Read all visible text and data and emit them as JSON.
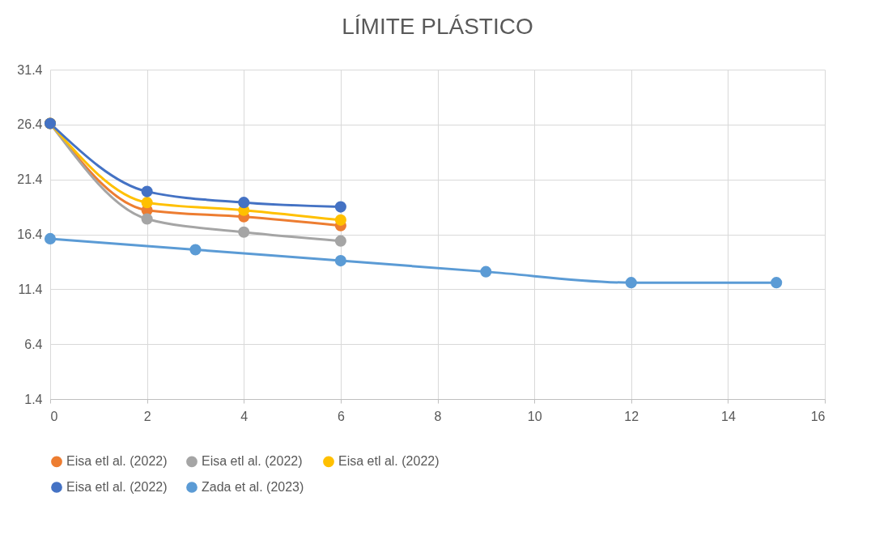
{
  "chart_data": {
    "type": "line",
    "title": "LÍMITE PLÁSTICO",
    "series": [
      {
        "name": "Eisa etl al. (2022)",
        "color": "#ed7d31",
        "x": [
          0,
          2,
          4,
          6
        ],
        "values": [
          26.5,
          18.6,
          18.0,
          17.2
        ]
      },
      {
        "name": "Eisa etl al. (2022)",
        "color": "#a5a5a5",
        "x": [
          0,
          2,
          4,
          6
        ],
        "values": [
          26.5,
          17.8,
          16.6,
          15.8
        ]
      },
      {
        "name": "Eisa etl al. (2022)",
        "color": "#ffc000",
        "x": [
          0,
          2,
          4,
          6
        ],
        "values": [
          26.5,
          19.3,
          18.6,
          17.7
        ]
      },
      {
        "name": "Eisa etl al. (2022)",
        "color": "#4472c4",
        "x": [
          0,
          2,
          4,
          6
        ],
        "values": [
          26.5,
          20.3,
          19.3,
          18.9
        ]
      },
      {
        "name": "Zada et al. (2023)",
        "color": "#5b9bd5",
        "x": [
          0,
          3,
          6,
          9,
          12,
          15
        ],
        "values": [
          16.0,
          15.0,
          14.0,
          13.0,
          12.0,
          12.0
        ]
      }
    ],
    "xlim": [
      0,
      16
    ],
    "xticks": [
      0,
      2,
      4,
      6,
      8,
      10,
      12,
      14,
      16
    ],
    "ylim": [
      1.4,
      31.4
    ],
    "yticks": [
      1.4,
      6.4,
      11.4,
      16.4,
      21.4,
      26.4,
      31.4
    ],
    "grid": true,
    "legend": "bottom",
    "marker": "circle",
    "line_style": "solid"
  }
}
